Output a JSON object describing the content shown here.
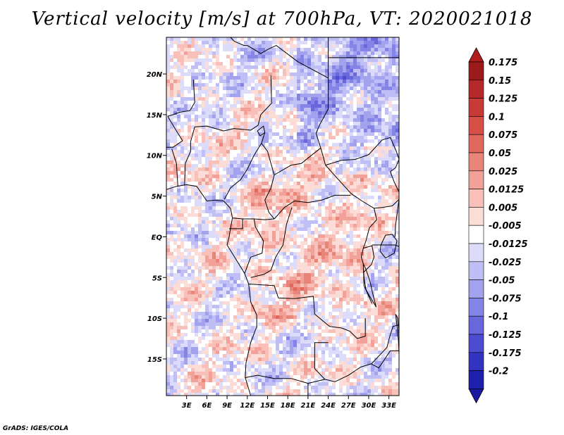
{
  "title": "Vertical velocity [m/s] at 700hPa, VT: 2020021018",
  "footer": "GrADS: IGES/COLA",
  "map": {
    "lon_range": [
      0,
      34.5
    ],
    "lat_range": [
      -19.5,
      24.5
    ],
    "lat_ticks": [
      {
        "value": 20,
        "label": "20N"
      },
      {
        "value": 15,
        "label": "15N"
      },
      {
        "value": 10,
        "label": "10N"
      },
      {
        "value": 5,
        "label": "5N"
      },
      {
        "value": 0,
        "label": "EQ"
      },
      {
        "value": -5,
        "label": "5S"
      },
      {
        "value": -10,
        "label": "10S"
      },
      {
        "value": -15,
        "label": "15S"
      }
    ],
    "lon_ticks": [
      {
        "value": 3,
        "label": "3E"
      },
      {
        "value": 6,
        "label": "6E"
      },
      {
        "value": 9,
        "label": "9E"
      },
      {
        "value": 12,
        "label": "12E"
      },
      {
        "value": 15,
        "label": "15E"
      },
      {
        "value": 18,
        "label": "18E"
      },
      {
        "value": 21,
        "label": "21E"
      },
      {
        "value": 24,
        "label": "24E"
      },
      {
        "value": 27,
        "label": "27E"
      },
      {
        "value": 30,
        "label": "30E"
      },
      {
        "value": 33,
        "label": "33E"
      }
    ]
  },
  "colorbar": {
    "levels": [
      {
        "label": "0.175",
        "color": "#9b1a1a"
      },
      {
        "label": "0.15",
        "color": "#b52a28"
      },
      {
        "label": "0.125",
        "color": "#c83a36"
      },
      {
        "label": "0.1",
        "color": "#d65048"
      },
      {
        "label": "0.075",
        "color": "#e0685f"
      },
      {
        "label": "0.05",
        "color": "#e98479"
      },
      {
        "label": "0.025",
        "color": "#f2a198"
      },
      {
        "label": "0.0125",
        "color": "#f8c0b8"
      },
      {
        "label": "0.005",
        "color": "#fcdcd6"
      },
      {
        "label": "-0.005",
        "color": "#ffffff"
      },
      {
        "label": "-0.0125",
        "color": "#dcdcfa"
      },
      {
        "label": "-0.025",
        "color": "#bfbff5"
      },
      {
        "label": "-0.05",
        "color": "#a2a2ee"
      },
      {
        "label": "-0.075",
        "color": "#8484e6"
      },
      {
        "label": "-0.1",
        "color": "#6868dc"
      },
      {
        "label": "-0.125",
        "color": "#4c4cd0"
      },
      {
        "label": "-0.175",
        "color": "#3333c2"
      },
      {
        "label": "-0.2",
        "color": "#1f1fae"
      }
    ],
    "top_triangle_color": "#b01c1c",
    "bottom_triangle_color": "#1a1aa0"
  }
}
